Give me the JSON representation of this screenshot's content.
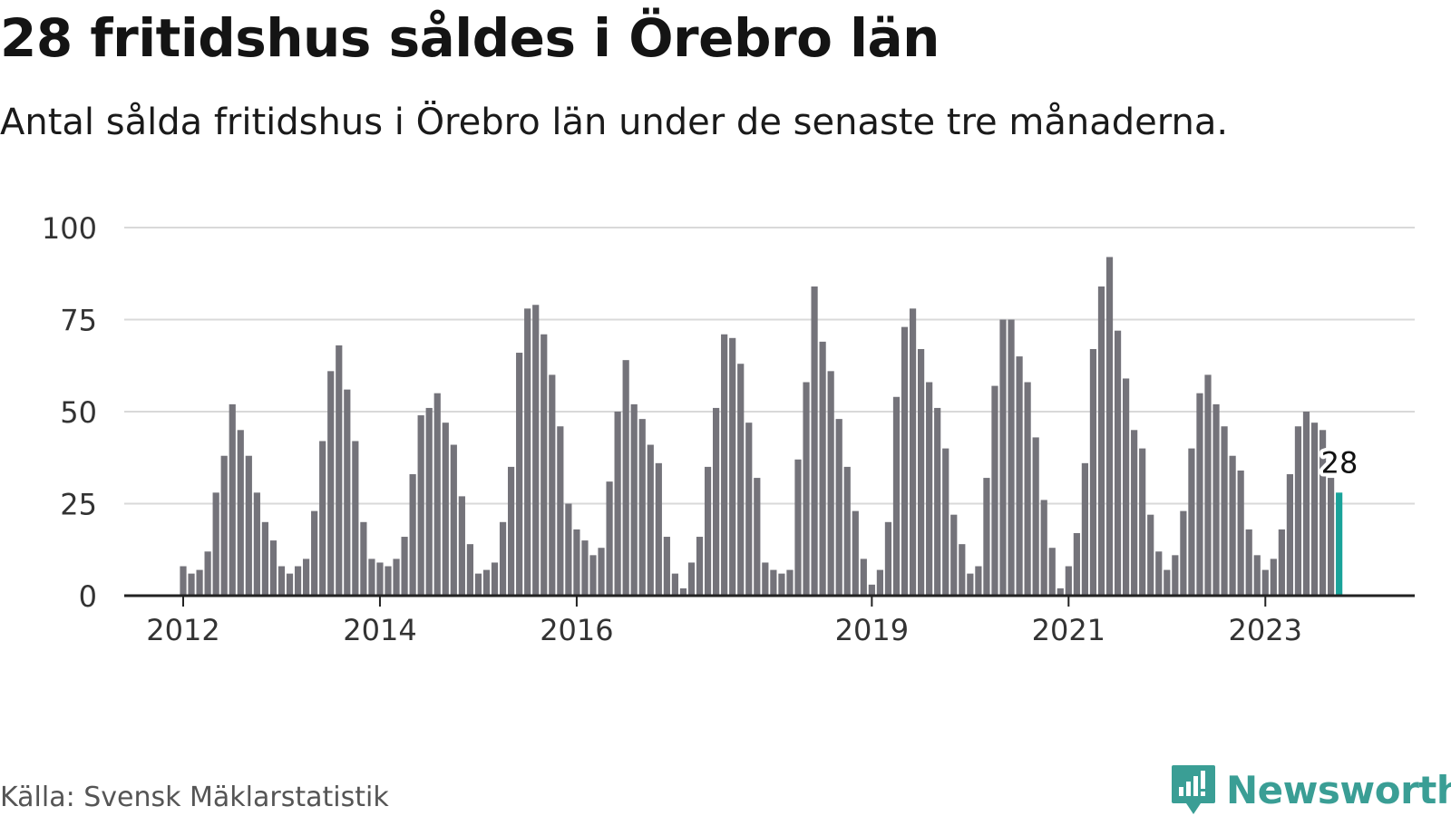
{
  "title": "28 fritidshus såldes i Örebro län",
  "subtitle": "Antal sålda fritidshus i Örebro län under de senaste tre månaderna.",
  "source": "Källa: Svensk Mäklarstatistik",
  "brand": {
    "name": "Newsworthy",
    "icon": "newsworthy-logo-icon",
    "color": "#3a9e95"
  },
  "colors": {
    "bar": "#74737a",
    "highlight": "#1aa39a",
    "grid": "#d9d9d9",
    "axis": "#222222"
  },
  "chart_data": {
    "type": "bar",
    "title": "28 fritidshus såldes i Örebro län",
    "xlabel": "",
    "ylabel": "",
    "ylim": [
      0,
      100
    ],
    "yticks": [
      0,
      25,
      50,
      75,
      100
    ],
    "grid": true,
    "x_tick_labels": [
      "2012",
      "2014",
      "2016",
      "2019",
      "2021",
      "2023"
    ],
    "x_tick_dates": [
      "2012-01",
      "2014-01",
      "2016-01",
      "2019-01",
      "2021-01",
      "2023-01"
    ],
    "start_date": "2012-01",
    "end_date": "2023-12",
    "values": [
      8,
      6,
      7,
      12,
      28,
      38,
      52,
      45,
      38,
      28,
      20,
      15,
      8,
      6,
      8,
      10,
      23,
      42,
      61,
      68,
      56,
      42,
      20,
      10,
      9,
      8,
      10,
      16,
      33,
      49,
      51,
      55,
      47,
      41,
      27,
      14,
      6,
      7,
      9,
      20,
      35,
      66,
      78,
      79,
      71,
      60,
      46,
      25,
      18,
      15,
      11,
      13,
      31,
      50,
      64,
      52,
      48,
      41,
      36,
      16,
      6,
      2,
      9,
      16,
      35,
      51,
      71,
      70,
      63,
      47,
      32,
      9,
      7,
      6,
      7,
      37,
      58,
      84,
      69,
      61,
      48,
      35,
      23,
      10,
      3,
      7,
      20,
      54,
      73,
      78,
      67,
      58,
      51,
      40,
      22,
      14,
      6,
      8,
      32,
      57,
      75,
      75,
      65,
      58,
      43,
      26,
      13,
      2,
      8,
      17,
      36,
      67,
      84,
      92,
      72,
      59,
      45,
      40,
      22,
      12,
      7,
      11,
      23,
      40,
      55,
      60,
      52,
      46,
      38,
      34,
      18,
      11,
      7,
      10,
      18,
      33,
      46,
      50,
      47,
      45,
      32,
      28
    ],
    "highlight": {
      "label": "28",
      "value": 28
    }
  }
}
